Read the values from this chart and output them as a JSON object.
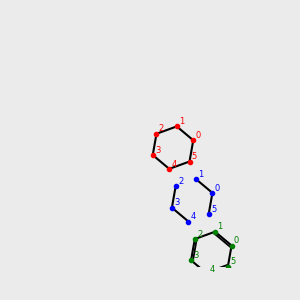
{
  "bg_color": "#ebebeb",
  "bond_color": "#000000",
  "N_color": "#0000ff",
  "O_color": "#ff0000",
  "S_color": "#aaaa00",
  "C_color": "#000000",
  "lw": 1.5,
  "font_size": 8.5
}
